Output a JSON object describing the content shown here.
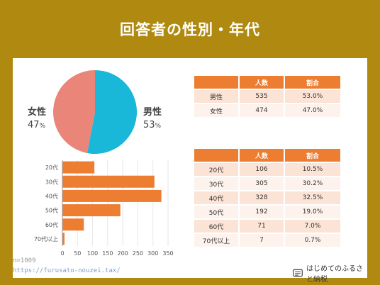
{
  "title": "回答者の性別・年代",
  "gender_table": {
    "headers": [
      "",
      "人数",
      "割合"
    ],
    "rows": [
      [
        "男性",
        "535",
        "53.0%"
      ],
      [
        "女性",
        "474",
        "47.0%"
      ]
    ]
  },
  "age_table": {
    "headers": [
      "",
      "人数",
      "割合"
    ],
    "rows": [
      [
        "20代",
        "106",
        "10.5%"
      ],
      [
        "30代",
        "305",
        "30.2%"
      ],
      [
        "40代",
        "328",
        "32.5%"
      ],
      [
        "50代",
        "192",
        "19.0%"
      ],
      [
        "60代",
        "71",
        "7.0%"
      ],
      [
        "70代以上",
        "7",
        "0.7%"
      ]
    ]
  },
  "chart_data": [
    {
      "type": "pie",
      "slices": [
        {
          "label": "男性",
          "value": 53,
          "value_label": "53",
          "unit": "%",
          "color": "#1ab8d8"
        },
        {
          "label": "女性",
          "value": 47,
          "value_label": "47",
          "unit": "%",
          "color": "#ea857a"
        }
      ]
    },
    {
      "type": "bar",
      "orientation": "horizontal",
      "categories": [
        "20代",
        "30代",
        "40代",
        "50代",
        "60代",
        "70代以上"
      ],
      "values": [
        106,
        305,
        328,
        192,
        71,
        7
      ],
      "xlim": [
        0,
        350
      ],
      "xticks": [
        0,
        50,
        100,
        150,
        200,
        250,
        300,
        350
      ],
      "bar_color": "#ed7d31"
    }
  ],
  "footer": {
    "sample_note": "n=1009",
    "url": "https://furusato-nouzei.tax/",
    "logo_text": "はじめてのふるさと納税"
  }
}
